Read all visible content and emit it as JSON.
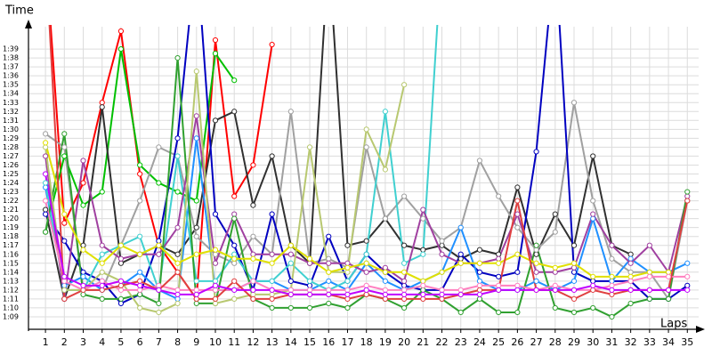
{
  "chart_data": {
    "type": "line",
    "y_label": "Time",
    "x_label": "Laps",
    "grid": true,
    "x": [
      1,
      2,
      3,
      4,
      5,
      6,
      7,
      8,
      9,
      10,
      11,
      12,
      13,
      14,
      15,
      16,
      17,
      18,
      19,
      20,
      21,
      22,
      23,
      24,
      25,
      26,
      27,
      28,
      29,
      30,
      31,
      32,
      33,
      34,
      35
    ],
    "xlim": [
      0.1,
      35.6
    ],
    "xticks": [
      1,
      2,
      3,
      4,
      5,
      6,
      7,
      8,
      9,
      10,
      11,
      12,
      13,
      14,
      15,
      16,
      17,
      18,
      19,
      20,
      21,
      22,
      23,
      24,
      25,
      26,
      27,
      28,
      29,
      30,
      31,
      32,
      33,
      34,
      35
    ],
    "ylim": [
      67.6,
      101.5
    ],
    "yticks": [
      {
        "value": 69,
        "label": "1:09"
      },
      {
        "value": 70,
        "label": "1:10"
      },
      {
        "value": 71,
        "label": "1:11"
      },
      {
        "value": 72,
        "label": "1:12"
      },
      {
        "value": 73,
        "label": "1:13"
      },
      {
        "value": 74,
        "label": "1:14"
      },
      {
        "value": 75,
        "label": "1:15"
      },
      {
        "value": 76,
        "label": "1:16"
      },
      {
        "value": 77,
        "label": "1:17"
      },
      {
        "value": 78,
        "label": "1:18"
      },
      {
        "value": 79,
        "label": "1:19"
      },
      {
        "value": 80,
        "label": "1:20"
      },
      {
        "value": 81,
        "label": "1:21"
      },
      {
        "value": 82,
        "label": "1:22"
      },
      {
        "value": 83,
        "label": "1:23"
      },
      {
        "value": 84,
        "label": "1:24"
      },
      {
        "value": 85,
        "label": "1:25"
      },
      {
        "value": 86,
        "label": "1:26"
      },
      {
        "value": 87,
        "label": "1:27"
      },
      {
        "value": 88,
        "label": "1:28"
      },
      {
        "value": 89,
        "label": "1:29"
      },
      {
        "value": 90,
        "label": "1:30"
      },
      {
        "value": 91,
        "label": "1:31"
      },
      {
        "value": 92,
        "label": "1:32"
      },
      {
        "value": 93,
        "label": "1:33"
      },
      {
        "value": 94,
        "label": "1:34"
      },
      {
        "value": 95,
        "label": "1:35"
      },
      {
        "value": 96,
        "label": "1:36"
      },
      {
        "value": 97,
        "label": "1:37"
      },
      {
        "value": 98,
        "label": "1:38"
      },
      {
        "value": 99,
        "label": "1:39"
      }
    ],
    "series": [
      {
        "color": "#ff0000",
        "values": [
          110,
          79.5,
          84,
          93,
          101,
          85,
          77,
          74,
          71,
          100,
          82.5,
          86,
          99.5,
          null,
          null,
          null,
          null,
          null,
          null,
          null,
          null,
          null,
          null,
          null,
          null,
          null,
          null,
          null,
          null,
          null,
          null,
          null,
          null,
          null,
          null
        ]
      },
      {
        "color": "#00c000",
        "values": [
          78.5,
          87,
          81.5,
          83,
          99,
          86,
          84,
          83,
          82,
          98.5,
          95.5,
          null,
          null,
          null,
          null,
          null,
          null,
          null,
          null,
          null,
          null,
          null,
          null,
          null,
          null,
          null,
          null,
          null,
          null,
          null,
          null,
          null,
          null,
          null,
          null
        ]
      },
      {
        "color": "#303030",
        "values": [
          81,
          71,
          77,
          92.5,
          75,
          76,
          77,
          76,
          79,
          91,
          92,
          81.5,
          87,
          77,
          75,
          110,
          77,
          77.5,
          80,
          77,
          76.5,
          77,
          75.5,
          76.5,
          76,
          83.5,
          76,
          80.5,
          77,
          87,
          77,
          76,
          null,
          null,
          null
        ]
      },
      {
        "color": "#a0a0a0",
        "values": [
          89.5,
          88,
          72,
          72,
          77,
          82,
          88,
          87,
          78,
          76,
          75,
          78,
          76,
          92,
          75,
          75.5,
          74.5,
          88,
          80,
          82.5,
          80,
          77.5,
          79,
          86.5,
          82.5,
          79,
          76.5,
          78.5,
          93,
          82,
          75.5,
          74,
          74,
          71,
          82
        ]
      },
      {
        "color": "#0000c0",
        "values": [
          80.5,
          77.5,
          74,
          73,
          70.5,
          71.5,
          77.5,
          89,
          110,
          80.5,
          77,
          72,
          80.5,
          73,
          72.5,
          78,
          73,
          76,
          74,
          72.5,
          72,
          72,
          76,
          74,
          73.5,
          74,
          87.5,
          110,
          74,
          73,
          73,
          73,
          71,
          71,
          72.5
        ]
      },
      {
        "color": "#2090ff",
        "values": [
          83.5,
          72.5,
          73.5,
          72,
          72.5,
          74,
          72,
          71,
          89,
          72,
          72,
          73,
          73,
          72,
          72,
          73,
          72,
          75,
          73,
          72,
          73,
          74,
          79,
          73,
          72,
          72,
          73,
          72,
          73,
          80,
          73,
          75.5,
          74,
          74,
          75
        ]
      },
      {
        "color": "#40d0d0",
        "values": [
          84,
          72,
          72,
          76,
          77,
          78,
          72,
          87,
          73,
          73,
          76,
          73,
          73,
          75,
          73,
          72,
          73,
          76,
          92,
          75,
          76,
          110,
          null,
          null,
          null,
          null,
          null,
          null,
          null,
          null,
          null,
          null,
          null,
          null,
          null
        ]
      },
      {
        "color": "#a040a0",
        "values": [
          87,
          71,
          86.5,
          77,
          75.5,
          76,
          76,
          79,
          91.5,
          75,
          80.5,
          76,
          76,
          76,
          75,
          75,
          75,
          74,
          74.5,
          73,
          81,
          76,
          75,
          75,
          75.5,
          80.5,
          74,
          74,
          74.5,
          80.5,
          77,
          75,
          77,
          74,
          82.5
        ]
      },
      {
        "color": "#30a030",
        "values": [
          78.5,
          89.5,
          71.5,
          71,
          71,
          71.5,
          70.5,
          98,
          70.5,
          70.5,
          80,
          71,
          70,
          70,
          70,
          70.5,
          70,
          71.5,
          71,
          70,
          72,
          71,
          69.5,
          71,
          69.5,
          69.5,
          77,
          70,
          69.5,
          70,
          69,
          70.5,
          71,
          71,
          83
        ]
      },
      {
        "color": "#b8c870",
        "values": [
          88,
          72,
          72,
          74,
          73,
          70,
          69.5,
          70.5,
          96.5,
          70.5,
          71,
          71.5,
          71.5,
          72,
          88,
          74,
          74,
          90,
          85.5,
          95,
          null,
          null,
          null,
          null,
          null,
          null,
          null,
          null,
          null,
          null,
          null,
          null,
          null,
          null,
          null
        ]
      },
      {
        "color": "#e0e000",
        "values": [
          88.5,
          80.5,
          76.5,
          75,
          77,
          76,
          77,
          75,
          76,
          76.5,
          75.5,
          75.5,
          75,
          77,
          75.5,
          74,
          74.5,
          75,
          74,
          74,
          73,
          74,
          75,
          75,
          75,
          76,
          75,
          74.5,
          75,
          73.5,
          73.5,
          73.5,
          74,
          74,
          null
        ]
      },
      {
        "color": "#ff80c0",
        "values": [
          82,
          73,
          72,
          73,
          72,
          72,
          72.5,
          72,
          72,
          72,
          72,
          73,
          72,
          72,
          72,
          72,
          72,
          72.5,
          72,
          72,
          72.5,
          72,
          72,
          72.5,
          72.5,
          72.5,
          72,
          72.5,
          72,
          72,
          72.5,
          73,
          73.5,
          73.5,
          73.5
        ]
      },
      {
        "color": "#e04040",
        "values": [
          110,
          71,
          72,
          72,
          72.5,
          73,
          72,
          74,
          71,
          71,
          73,
          71,
          71,
          71.5,
          71.5,
          71.5,
          71,
          71.5,
          71,
          71,
          71,
          71,
          71.5,
          72,
          72,
          82,
          72,
          72,
          71,
          72,
          71.5,
          72,
          72,
          72,
          82
        ]
      },
      {
        "color": "#c000ff",
        "values": [
          85,
          73.5,
          72.5,
          72.5,
          73,
          72.5,
          72,
          71.5,
          71.5,
          72.5,
          72,
          72,
          72,
          71.5,
          71.5,
          71.5,
          71.5,
          72,
          71.5,
          71.5,
          71.5,
          71.5,
          71.5,
          71.5,
          72,
          72,
          72,
          72,
          72,
          72.5,
          72,
          72,
          72,
          72,
          72
        ]
      }
    ]
  }
}
